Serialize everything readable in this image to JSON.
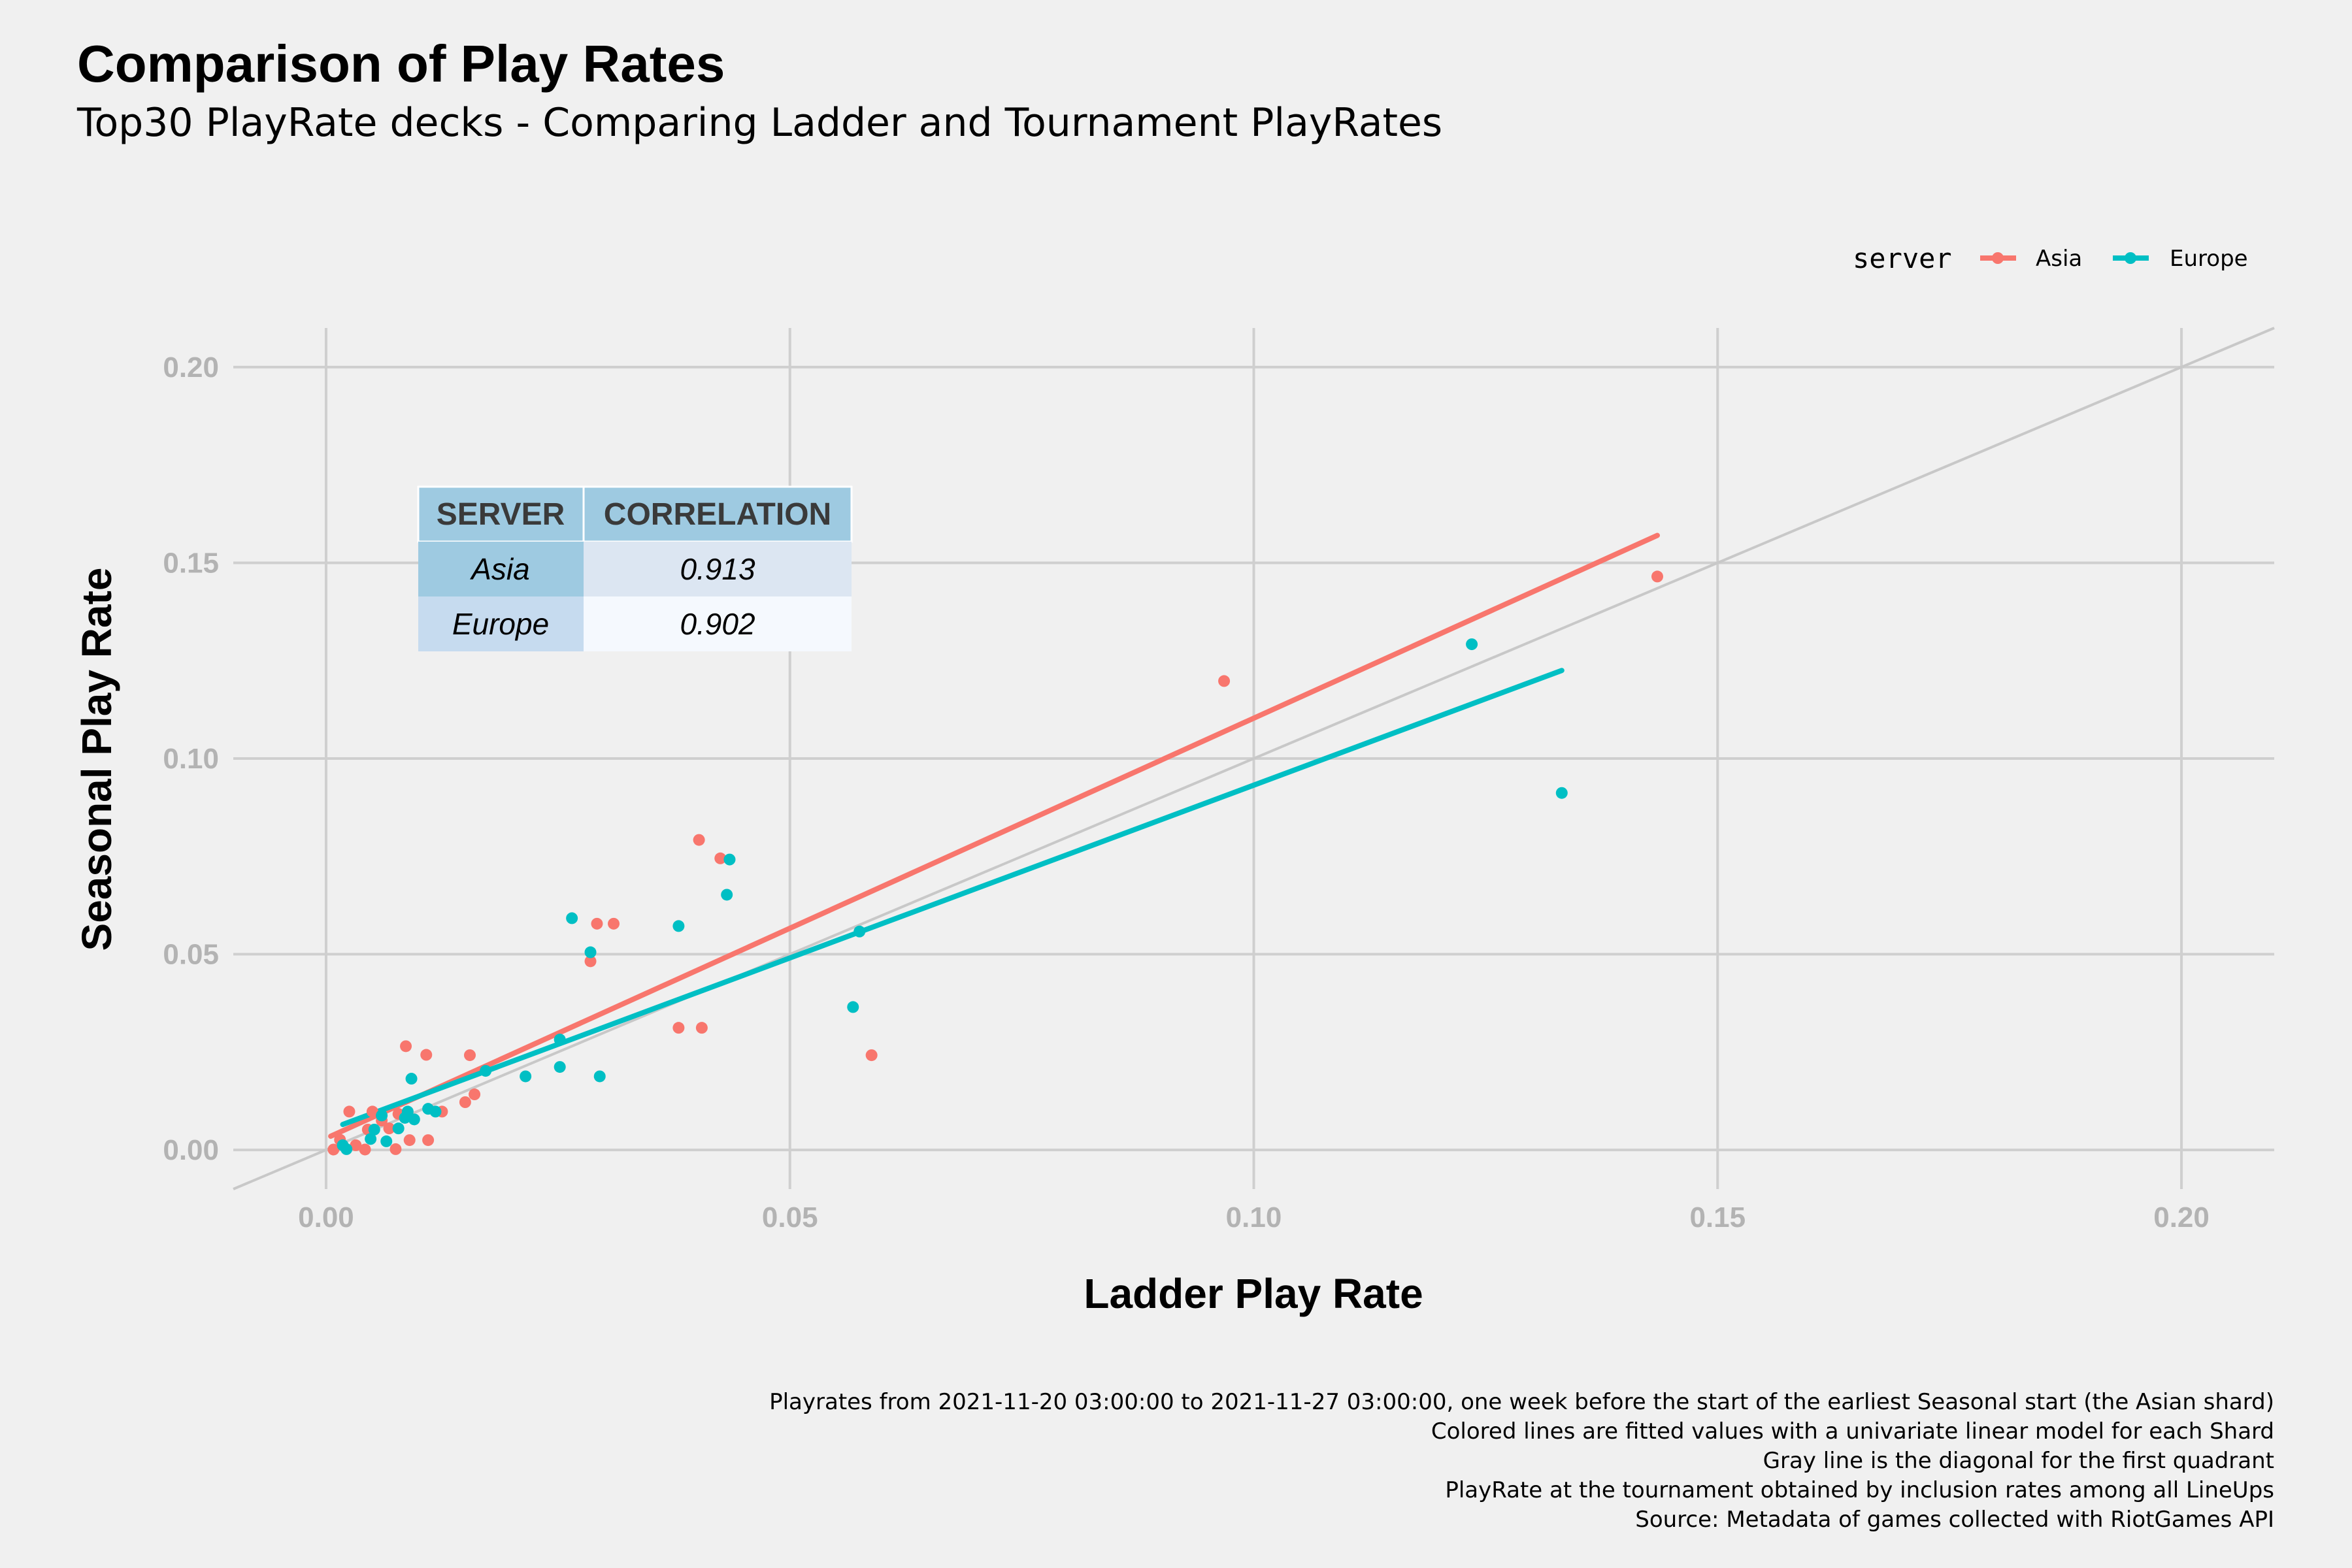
{
  "chart_data": {
    "type": "scatter",
    "title": "Comparison of Play Rates",
    "subtitle": "Top30 PlayRate decks - Comparing Ladder and Tournament PlayRates",
    "xlabel": "Ladder Play Rate",
    "ylabel": "Seasonal Play Rate",
    "xlim": [
      -0.01,
      0.21
    ],
    "ylim": [
      -0.01,
      0.21
    ],
    "xticks": [
      0.0,
      0.05,
      0.1,
      0.15,
      0.2
    ],
    "yticks": [
      0.0,
      0.05,
      0.1,
      0.15,
      0.2
    ],
    "xtick_labels": [
      "0.00",
      "0.05",
      "0.10",
      "0.15",
      "0.20"
    ],
    "ytick_labels": [
      "0.00",
      "0.05",
      "0.10",
      "0.15",
      "0.20"
    ],
    "grid": true,
    "legend": {
      "title": "server",
      "position": "top-right",
      "entries": [
        "Asia",
        "Europe"
      ]
    },
    "series": [
      {
        "name": "Asia",
        "color": "#f8766d",
        "points": [
          [
            0.0008,
            0.0001
          ],
          [
            0.0015,
            0.0026
          ],
          [
            0.0025,
            0.0098
          ],
          [
            0.0032,
            0.0012
          ],
          [
            0.0042,
            0.0001
          ],
          [
            0.0045,
            0.0052
          ],
          [
            0.005,
            0.0098
          ],
          [
            0.006,
            0.0075
          ],
          [
            0.0068,
            0.0055
          ],
          [
            0.0075,
            0.0002
          ],
          [
            0.0078,
            0.0092
          ],
          [
            0.0086,
            0.0265
          ],
          [
            0.009,
            0.0025
          ],
          [
            0.0108,
            0.0243
          ],
          [
            0.011,
            0.0025
          ],
          [
            0.0125,
            0.0098
          ],
          [
            0.015,
            0.0122
          ],
          [
            0.0155,
            0.0242
          ],
          [
            0.016,
            0.0142
          ],
          [
            0.0285,
            0.0482
          ],
          [
            0.0292,
            0.0578
          ],
          [
            0.031,
            0.0578
          ],
          [
            0.038,
            0.0312
          ],
          [
            0.0402,
            0.0792
          ],
          [
            0.0405,
            0.0312
          ],
          [
            0.0425,
            0.0745
          ],
          [
            0.0588,
            0.0242
          ],
          [
            0.0968,
            0.1198
          ],
          [
            0.1435,
            0.1465
          ]
        ],
        "fit": [
          [
            0.0005,
            0.0035
          ],
          [
            0.1435,
            0.157
          ]
        ]
      },
      {
        "name": "Europe",
        "color": "#00bfc4",
        "points": [
          [
            0.0018,
            0.0012
          ],
          [
            0.0022,
            0.0002
          ],
          [
            0.0048,
            0.0028
          ],
          [
            0.0052,
            0.0052
          ],
          [
            0.006,
            0.0088
          ],
          [
            0.0065,
            0.0022
          ],
          [
            0.0078,
            0.0055
          ],
          [
            0.0085,
            0.0082
          ],
          [
            0.0088,
            0.0098
          ],
          [
            0.0092,
            0.0182
          ],
          [
            0.0095,
            0.0078
          ],
          [
            0.011,
            0.0105
          ],
          [
            0.0118,
            0.0098
          ],
          [
            0.0172,
            0.0202
          ],
          [
            0.0215,
            0.0188
          ],
          [
            0.0252,
            0.0282
          ],
          [
            0.0252,
            0.0212
          ],
          [
            0.0265,
            0.0592
          ],
          [
            0.0285,
            0.0505
          ],
          [
            0.0295,
            0.0188
          ],
          [
            0.038,
            0.0572
          ],
          [
            0.0432,
            0.0652
          ],
          [
            0.0435,
            0.0742
          ],
          [
            0.0568,
            0.0365
          ],
          [
            0.0575,
            0.0558
          ],
          [
            0.1235,
            0.1292
          ],
          [
            0.1332,
            0.0912
          ]
        ],
        "fit": [
          [
            0.0018,
            0.0065
          ],
          [
            0.1332,
            0.1225
          ]
        ]
      }
    ],
    "diagonal": {
      "color": "#c8c8c8",
      "from": [
        -0.01,
        -0.01
      ],
      "to": [
        0.21,
        0.21
      ]
    },
    "correlation_table": {
      "headers": [
        "SERVER",
        "CORRELATION"
      ],
      "rows": [
        [
          "Asia",
          "0.913"
        ],
        [
          "Europe",
          "0.902"
        ]
      ]
    },
    "caption": [
      "Playrates from 2021-11-20 03:00:00 to 2021-11-27 03:00:00, one week before the start of the earliest Seasonal start (the Asian shard)",
      "Colored lines are fitted values with a univariate linear model for each Shard",
      "Gray line is the diagonal for the first quadrant",
      "PlayRate at the tournament obtained by inclusion rates among all LineUps",
      "Source: Metadata of games collected with RiotGames API"
    ]
  }
}
